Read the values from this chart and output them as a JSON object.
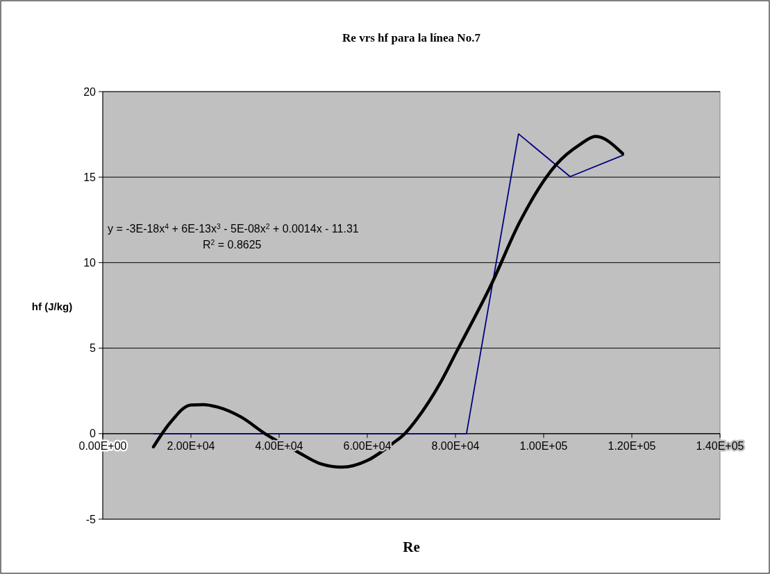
{
  "chart_data": {
    "type": "line",
    "title": "Re vrs hf para la línea No.7",
    "xlabel": "Re",
    "ylabel": "hf (J/kg)",
    "xlim": [
      0,
      140000
    ],
    "ylim": [
      -5,
      20
    ],
    "xticks": [
      {
        "value": 0,
        "label": "0.00E+00"
      },
      {
        "value": 20000,
        "label": "2.00E+04"
      },
      {
        "value": 40000,
        "label": "4.00E+04"
      },
      {
        "value": 60000,
        "label": "6.00E+04"
      },
      {
        "value": 80000,
        "label": "8.00E+04"
      },
      {
        "value": 100000,
        "label": "1.00E+05"
      },
      {
        "value": 120000,
        "label": "1.20E+05"
      },
      {
        "value": 140000,
        "label": "1.40E+05"
      }
    ],
    "yticks": [
      -5,
      0,
      5,
      10,
      15,
      20
    ],
    "grid": "y",
    "marker": "none",
    "line_style": "solid",
    "annotations": [
      "y = -3E-18x$^{4}$ + 6E-13x$^{3}$ - 5E-08x$^{2}$ + 0.0014x - 11.31",
      "R$^{2}$ = 0.8625"
    ],
    "series": [
      {
        "color": "#000080",
        "x": [
          11500,
          23300,
          35000,
          46800,
          58600,
          70400,
          82500,
          94300,
          106000,
          118100
        ],
        "values": [
          0,
          0,
          0,
          0,
          0,
          0,
          0,
          17.53,
          15.03,
          16.29
        ]
      },
      {
        "type": "line",
        "color": "#000000",
        "x": [
          11500,
          15200,
          20000,
          22800,
          26000,
          31400,
          36800,
          44100,
          49500,
          54200,
          60300,
          65700,
          68500,
          71200,
          76600,
          80200,
          88300,
          94600,
          102800,
          108200,
          111800,
          117900
        ],
        "values": [
          -0.77,
          0.61,
          1.68,
          1.7,
          1.56,
          0.97,
          0,
          -1.05,
          -1.77,
          -1.96,
          -1.53,
          -0.58,
          0,
          0.84,
          2.99,
          4.77,
          8.82,
          12.39,
          15.72,
          16.9,
          17.38,
          16.38
        ]
      }
    ]
  }
}
